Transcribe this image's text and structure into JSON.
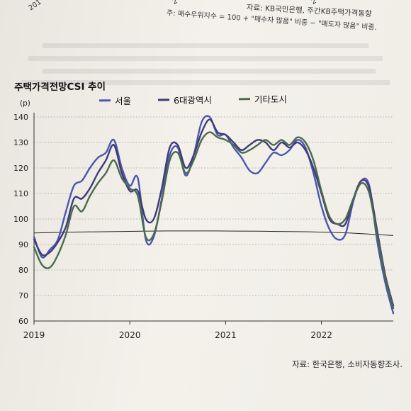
{
  "header_fragments": {
    "left": "201",
    "mid": "2",
    "right": "2"
  },
  "source_note_top": "자료: KB국민은행, 주간KB주택가격동향",
  "definition_note": "주: 매수우위지수 = 100 + \"매수자 많음\" 비중 − \"매도자 많음\" 비중.",
  "source_note_bottom": "자료: 한국은행, 소비자동향조사.",
  "colors": {
    "seoul": "#4b56b0",
    "metro6": "#3f3a7a",
    "other": "#4a6b4a",
    "reference": "#222222",
    "grid": "#9a9a9a"
  },
  "chart_data": {
    "type": "line",
    "title": "주택가격전망CSI 추이",
    "ylabel": "(p)",
    "xlabel": "",
    "ylim": [
      60,
      140
    ],
    "yticks": [
      60,
      70,
      80,
      90,
      100,
      110,
      120,
      130,
      140
    ],
    "xlim": [
      "2019-01",
      "2022-10"
    ],
    "xticks": [
      {
        "label": "2019",
        "value": "2019-01"
      },
      {
        "label": "2020",
        "value": "2020-01"
      },
      {
        "label": "2021",
        "value": "2021-01"
      },
      {
        "label": "2022",
        "value": "2022-01"
      }
    ],
    "grid": "horizontal dotted",
    "legend_position": "top",
    "x": [
      "2019-01",
      "2019-02",
      "2019-03",
      "2019-04",
      "2019-05",
      "2019-06",
      "2019-07",
      "2019-08",
      "2019-09",
      "2019-10",
      "2019-11",
      "2019-12",
      "2020-01",
      "2020-02",
      "2020-03",
      "2020-04",
      "2020-05",
      "2020-06",
      "2020-07",
      "2020-08",
      "2020-09",
      "2020-10",
      "2020-11",
      "2020-12",
      "2021-01",
      "2021-02",
      "2021-03",
      "2021-04",
      "2021-05",
      "2021-06",
      "2021-07",
      "2021-08",
      "2021-09",
      "2021-10",
      "2021-11",
      "2021-12",
      "2022-01",
      "2022-02",
      "2022-03",
      "2022-04",
      "2022-05",
      "2022-06",
      "2022-07",
      "2022-08",
      "2022-09",
      "2022-10"
    ],
    "series": [
      {
        "name": "서울",
        "color_key": "seoul",
        "values": [
          93,
          85,
          88,
          92,
          103,
          113,
          115,
          120,
          124,
          126,
          131,
          120,
          113,
          116,
          92,
          93,
          108,
          125,
          128,
          117,
          125,
          138,
          140,
          133,
          133,
          128,
          124,
          119,
          118,
          122,
          126,
          125,
          127,
          131,
          128,
          118,
          105,
          96,
          92,
          94,
          107,
          115,
          113,
          91,
          75,
          63
        ]
      },
      {
        "name": "6대광역시",
        "color_key": "metro6",
        "values": [
          92,
          86,
          87,
          91,
          97,
          108,
          108,
          112,
          118,
          123,
          129,
          118,
          111,
          111,
          100,
          100,
          112,
          128,
          129,
          120,
          125,
          134,
          139,
          134,
          133,
          130,
          127,
          129,
          131,
          130,
          127,
          130,
          128,
          130,
          127,
          120,
          110,
          100,
          98,
          98,
          108,
          115,
          112,
          95,
          78,
          66
        ]
      },
      {
        "name": "기타도시",
        "color_key": "other",
        "values": [
          89,
          82,
          81,
          86,
          94,
          105,
          103,
          109,
          114,
          118,
          123,
          116,
          112,
          109,
          93,
          94,
          107,
          123,
          126,
          118,
          123,
          131,
          134,
          132,
          131,
          129,
          126,
          127,
          129,
          131,
          129,
          131,
          129,
          132,
          130,
          123,
          111,
          101,
          98,
          100,
          108,
          114,
          110,
          93,
          77,
          65
        ]
      }
    ],
    "reference_line": {
      "values": [
        94.5,
        94.9,
        95.1,
        95.3,
        95.3,
        95.2,
        95.0,
        94.5,
        93.5
      ]
    }
  }
}
